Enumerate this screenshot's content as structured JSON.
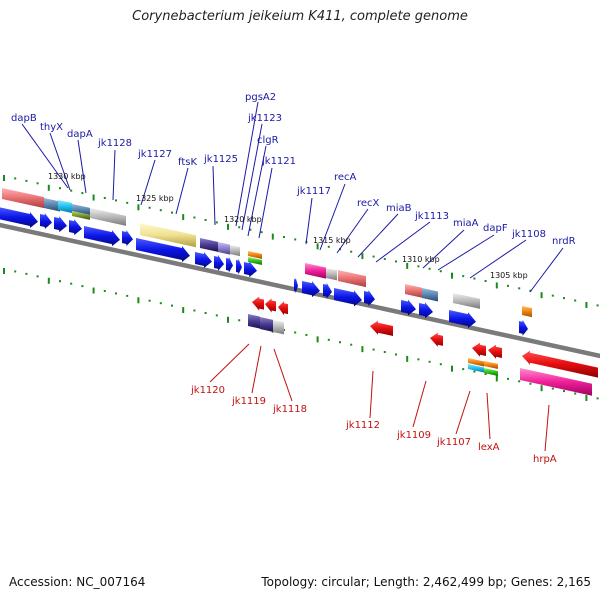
{
  "header": {
    "title": "Corynebacterium jeikeium K411, complete genome"
  },
  "footer": {
    "accession": "Accession: NC_007164",
    "summary": "Topology: circular; Length: 2,462,499 bp; Genes: 2,165"
  },
  "map": {
    "scale_labels": [
      "1330 kbp",
      "1325 kbp",
      "1320 kbp",
      "1315 kbp",
      "1310 kbp",
      "1305 kbp"
    ],
    "top_labels": [
      "dapB",
      "thyX",
      "dapA",
      "jk1128",
      "jk1127",
      "ftsK",
      "jk1125",
      "pgsA2",
      "jk1123",
      "clgR",
      "jk1121",
      "jk1117",
      "recA",
      "recX",
      "miaB",
      "jk1113",
      "miaA",
      "dapF",
      "jk1108",
      "nrdR"
    ],
    "bottom_labels": [
      "jk1120",
      "jk1119",
      "jk1118",
      "jk1112",
      "jk1109",
      "jk1107",
      "lexA",
      "hrpA"
    ],
    "colors": {
      "forward_gene": "#0a14e6",
      "reverse_gene": "#e60d0d",
      "top_label": "#1a1aa6",
      "bottom_label": "#c21010",
      "backbone": "#808080",
      "tick": "#1a8a1a"
    }
  }
}
